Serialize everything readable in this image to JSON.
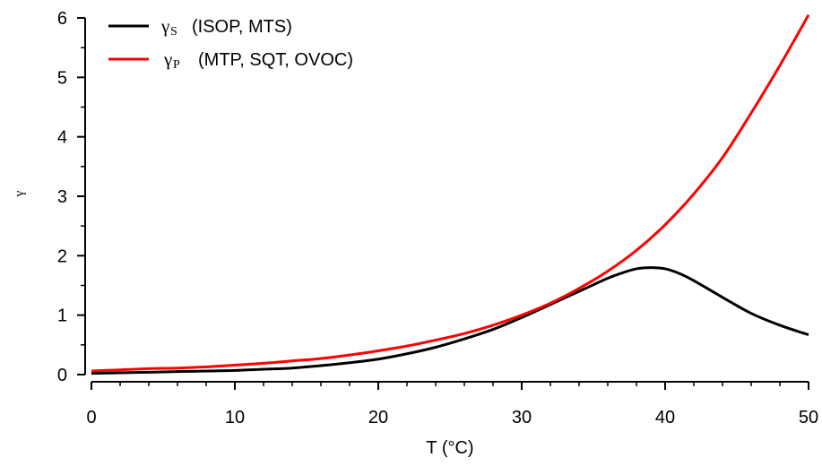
{
  "chart_data": {
    "type": "line",
    "xlabel": "T (°C)",
    "ylabel": "γ",
    "xlim": [
      0,
      50
    ],
    "ylim": [
      0,
      6
    ],
    "x_ticks": [
      0,
      10,
      20,
      30,
      40,
      50
    ],
    "y_ticks": [
      0,
      1,
      2,
      3,
      4,
      5,
      6
    ],
    "grid": false,
    "legend_position": "top-left",
    "series": [
      {
        "name": "γS (ISOP, MTS)",
        "symbol": "γ",
        "subscript": "S",
        "label_text": "(ISOP, MTS)",
        "color": "#000000",
        "x": [
          0,
          2,
          4,
          6,
          8,
          10,
          12,
          14,
          16,
          18,
          20,
          22,
          24,
          26,
          28,
          30,
          32,
          34,
          36,
          37,
          38,
          39,
          40,
          41,
          42,
          44,
          46,
          48,
          50
        ],
        "values": [
          0.02,
          0.03,
          0.04,
          0.05,
          0.06,
          0.07,
          0.09,
          0.11,
          0.15,
          0.2,
          0.26,
          0.35,
          0.46,
          0.6,
          0.76,
          0.96,
          1.18,
          1.4,
          1.62,
          1.71,
          1.78,
          1.8,
          1.78,
          1.7,
          1.58,
          1.3,
          1.03,
          0.83,
          0.67
        ]
      },
      {
        "name": "γP (MTP, SQT, OVOC)",
        "symbol": "γ",
        "subscript": "P",
        "label_text": "(MTP, SQT, OVOC)",
        "color": "#ff0000",
        "x": [
          0,
          2,
          4,
          6,
          8,
          10,
          12,
          14,
          16,
          18,
          20,
          22,
          24,
          26,
          28,
          30,
          32,
          34,
          36,
          38,
          40,
          42,
          44,
          46,
          48,
          50
        ],
        "values": [
          0.06,
          0.08,
          0.1,
          0.11,
          0.13,
          0.16,
          0.19,
          0.23,
          0.27,
          0.33,
          0.4,
          0.48,
          0.58,
          0.69,
          0.83,
          1.0,
          1.2,
          1.45,
          1.74,
          2.09,
          2.52,
          3.04,
          3.65,
          4.4,
          5.2,
          6.05
        ]
      }
    ]
  }
}
